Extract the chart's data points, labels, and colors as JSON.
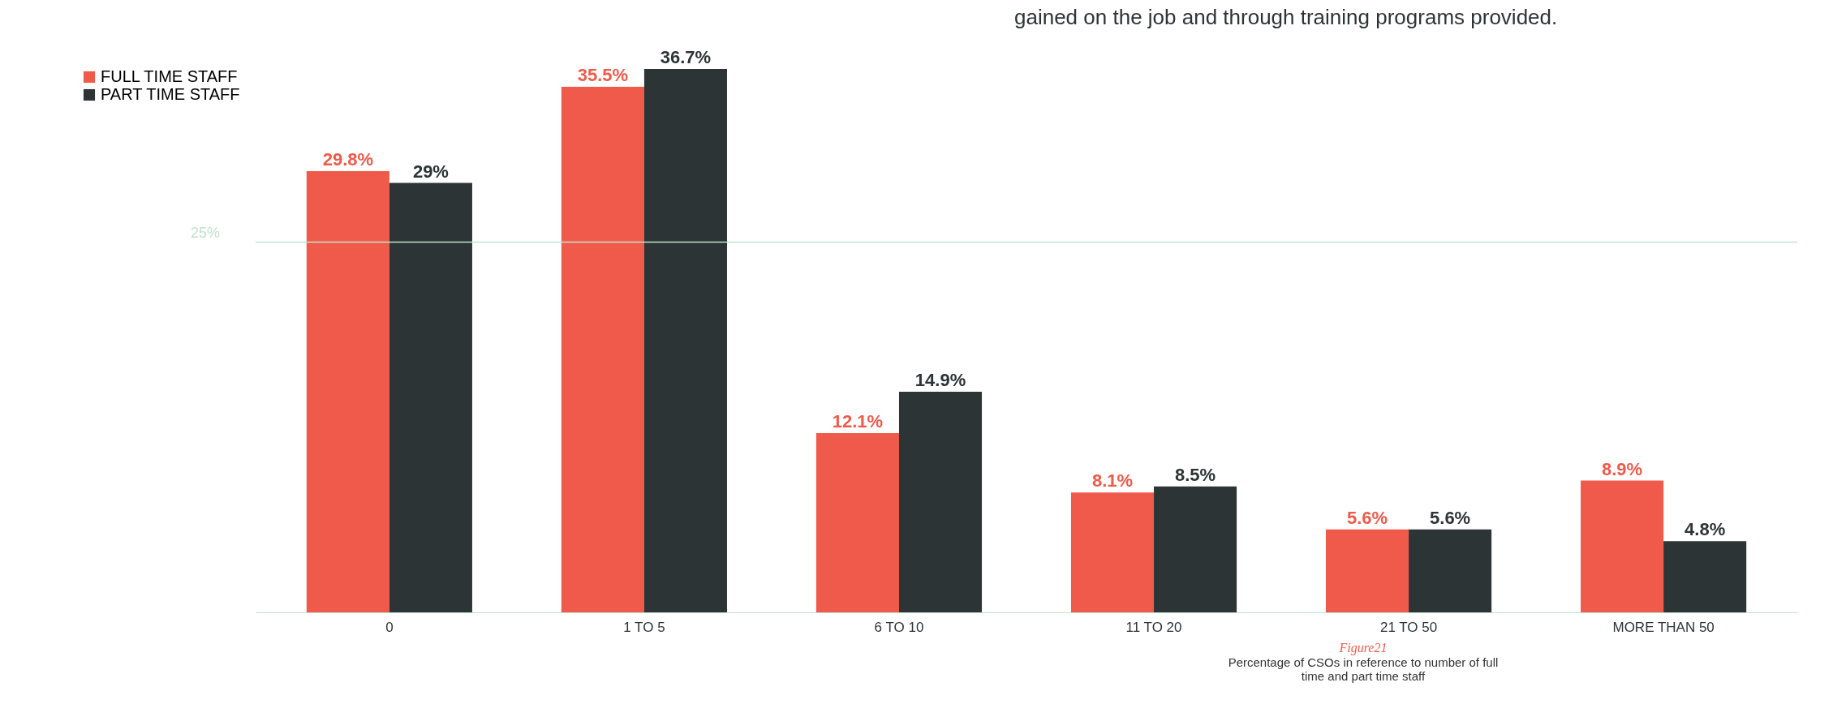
{
  "chart_data": {
    "type": "bar",
    "categories": [
      "0",
      "1 TO 5",
      "6 TO 10",
      "11 TO 20",
      "21 TO 50",
      "MORE THAN 50"
    ],
    "series": [
      {
        "name": "FULL TIME STAFF",
        "color": "#f05a4a",
        "values": [
          29.8,
          35.5,
          12.1,
          8.1,
          5.6,
          8.9
        ],
        "value_labels": [
          "29.8%",
          "35.5%",
          "12.1%",
          "8.1%",
          "5.6%",
          "8.9%"
        ]
      },
      {
        "name": "PART TIME STAFF",
        "color": "#2d3436",
        "values": [
          29,
          36.7,
          14.9,
          8.5,
          5.6,
          4.8
        ],
        "value_labels": [
          "29%",
          "36.7%",
          "14.9%",
          "8.5%",
          "5.6%",
          "4.8%"
        ]
      }
    ],
    "ref_lines": [
      {
        "axis": "y",
        "value": 25,
        "label": "25%",
        "color": "#bfe3cc"
      }
    ],
    "legend": "left",
    "annotations": [
      "gained on the job and through training programs provided.",
      "Figure21",
      "Percentage of CSOs in reference to number of full time and part time staff"
    ]
  }
}
